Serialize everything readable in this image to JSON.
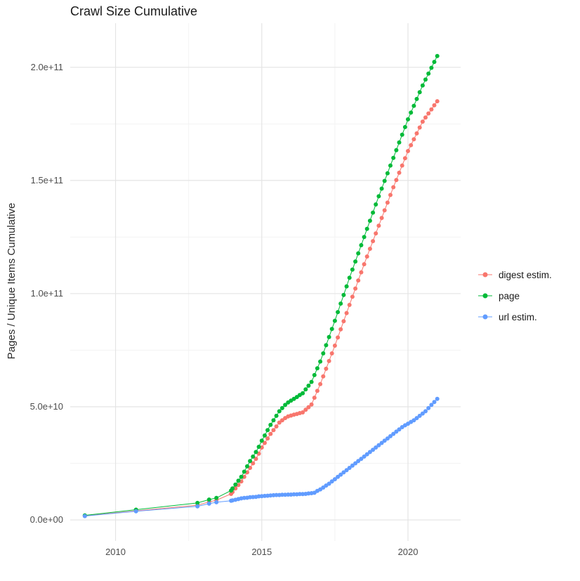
{
  "chart_data": {
    "type": "scatter",
    "title": "Crawl Size Cumulative",
    "xlabel": "",
    "ylabel": "Pages / Unique Items Cumulative",
    "legend_position": "right",
    "grid": true,
    "x_ticks": [
      2010,
      2015,
      2020
    ],
    "x_tick_labels": [
      "2010",
      "2015",
      "2020"
    ],
    "x_minor_ticks": [
      2012.5,
      2017.5
    ],
    "y_value_unit": 10000000000,
    "y_ticks_scaled": [
      0,
      5,
      10,
      15,
      20
    ],
    "y_tick_labels": [
      "0.0e+00",
      "5.0e+10",
      "1.0e+11",
      "1.5e+11",
      "2.0e+11"
    ],
    "y_minor_ticks_scaled": [
      2.5,
      7.5,
      12.5,
      17.5
    ],
    "xlim": [
      2008.45,
      2021.8
    ],
    "ylim_scaled": [
      -0.93,
      21.95
    ],
    "grid_major_color": "#E4E4E4",
    "grid_minor_color": "#F3F3F3",
    "tick_label_color": "#4D4D4D",
    "series": [
      {
        "id": "digest-estim",
        "name": "digest estim.",
        "color": "#F8766D",
        "points_sparse": [
          [
            2008.95,
            0.18
          ],
          [
            2010.7,
            0.4
          ],
          [
            2012.8,
            0.65
          ],
          [
            2013.2,
            0.8
          ],
          [
            2013.45,
            0.87
          ],
          [
            2013.95,
            1.15
          ]
        ],
        "dense_x_start": 2014.0,
        "dense_x_step": 0.1,
        "dense_y": [
          1.23,
          1.39,
          1.54,
          1.7,
          1.9,
          2.1,
          2.3,
          2.5,
          2.7,
          2.93,
          3.2,
          3.4,
          3.6,
          3.8,
          3.97,
          4.13,
          4.3,
          4.4,
          4.5,
          4.57,
          4.61,
          4.65,
          4.68,
          4.72,
          4.75,
          4.87,
          4.98,
          5.1,
          5.4,
          5.7,
          6.0,
          6.34,
          6.68,
          7.02,
          7.36,
          7.7,
          8.06,
          8.42,
          8.78,
          9.14,
          9.5,
          9.86,
          10.22,
          10.58,
          10.94,
          11.3,
          11.64,
          11.98,
          12.32,
          12.66,
          13.0,
          13.34,
          13.68,
          14.02,
          14.36,
          14.7,
          15.02,
          15.34,
          15.66,
          15.98,
          16.3,
          16.56,
          16.82,
          17.08,
          17.34,
          17.6,
          17.78,
          17.96,
          18.14,
          18.32,
          18.5
        ]
      },
      {
        "id": "page",
        "name": "page",
        "color": "#00BA38",
        "points_sparse": [
          [
            2008.95,
            0.2
          ],
          [
            2010.7,
            0.45
          ],
          [
            2012.8,
            0.75
          ],
          [
            2013.2,
            0.9
          ],
          [
            2013.45,
            0.97
          ],
          [
            2013.95,
            1.3
          ]
        ],
        "dense_x_start": 2014.0,
        "dense_x_step": 0.1,
        "dense_y": [
          1.39,
          1.56,
          1.73,
          1.9,
          2.13,
          2.37,
          2.6,
          2.8,
          3.0,
          3.23,
          3.5,
          3.73,
          3.97,
          4.2,
          4.4,
          4.6,
          4.8,
          4.94,
          5.08,
          5.19,
          5.27,
          5.35,
          5.43,
          5.52,
          5.6,
          5.77,
          5.93,
          6.1,
          6.4,
          6.7,
          7.0,
          7.36,
          7.72,
          8.08,
          8.44,
          8.8,
          9.18,
          9.56,
          9.94,
          10.32,
          10.7,
          11.06,
          11.42,
          11.78,
          12.14,
          12.5,
          12.86,
          13.22,
          13.58,
          13.94,
          14.3,
          14.64,
          14.98,
          15.32,
          15.66,
          16.0,
          16.34,
          16.68,
          17.02,
          17.36,
          17.7,
          18.0,
          18.3,
          18.6,
          18.9,
          19.2,
          19.46,
          19.72,
          19.98,
          20.24,
          20.5
        ]
      },
      {
        "id": "url-estim",
        "name": "url estim.",
        "color": "#619CFF",
        "points_sparse": [
          [
            2008.95,
            0.17
          ],
          [
            2010.7,
            0.38
          ],
          [
            2012.8,
            0.6
          ],
          [
            2013.2,
            0.72
          ],
          [
            2013.45,
            0.78
          ],
          [
            2013.95,
            0.85
          ]
        ],
        "dense_x_start": 2014.0,
        "dense_x_step": 0.1,
        "dense_y": [
          0.86,
          0.89,
          0.92,
          0.95,
          0.97,
          0.98,
          1.0,
          1.01,
          1.02,
          1.04,
          1.05,
          1.06,
          1.07,
          1.08,
          1.09,
          1.1,
          1.1,
          1.11,
          1.11,
          1.12,
          1.12,
          1.13,
          1.13,
          1.14,
          1.14,
          1.15,
          1.17,
          1.18,
          1.2,
          1.28,
          1.35,
          1.43,
          1.52,
          1.6,
          1.7,
          1.8,
          1.9,
          2.0,
          2.1,
          2.2,
          2.3,
          2.4,
          2.5,
          2.6,
          2.7,
          2.8,
          2.9,
          3.0,
          3.1,
          3.2,
          3.3,
          3.4,
          3.5,
          3.6,
          3.7,
          3.8,
          3.9,
          4.0,
          4.1,
          4.18,
          4.25,
          4.33,
          4.4,
          4.5,
          4.6,
          4.7,
          4.8,
          4.94,
          5.08,
          5.21,
          5.35
        ]
      }
    ]
  }
}
